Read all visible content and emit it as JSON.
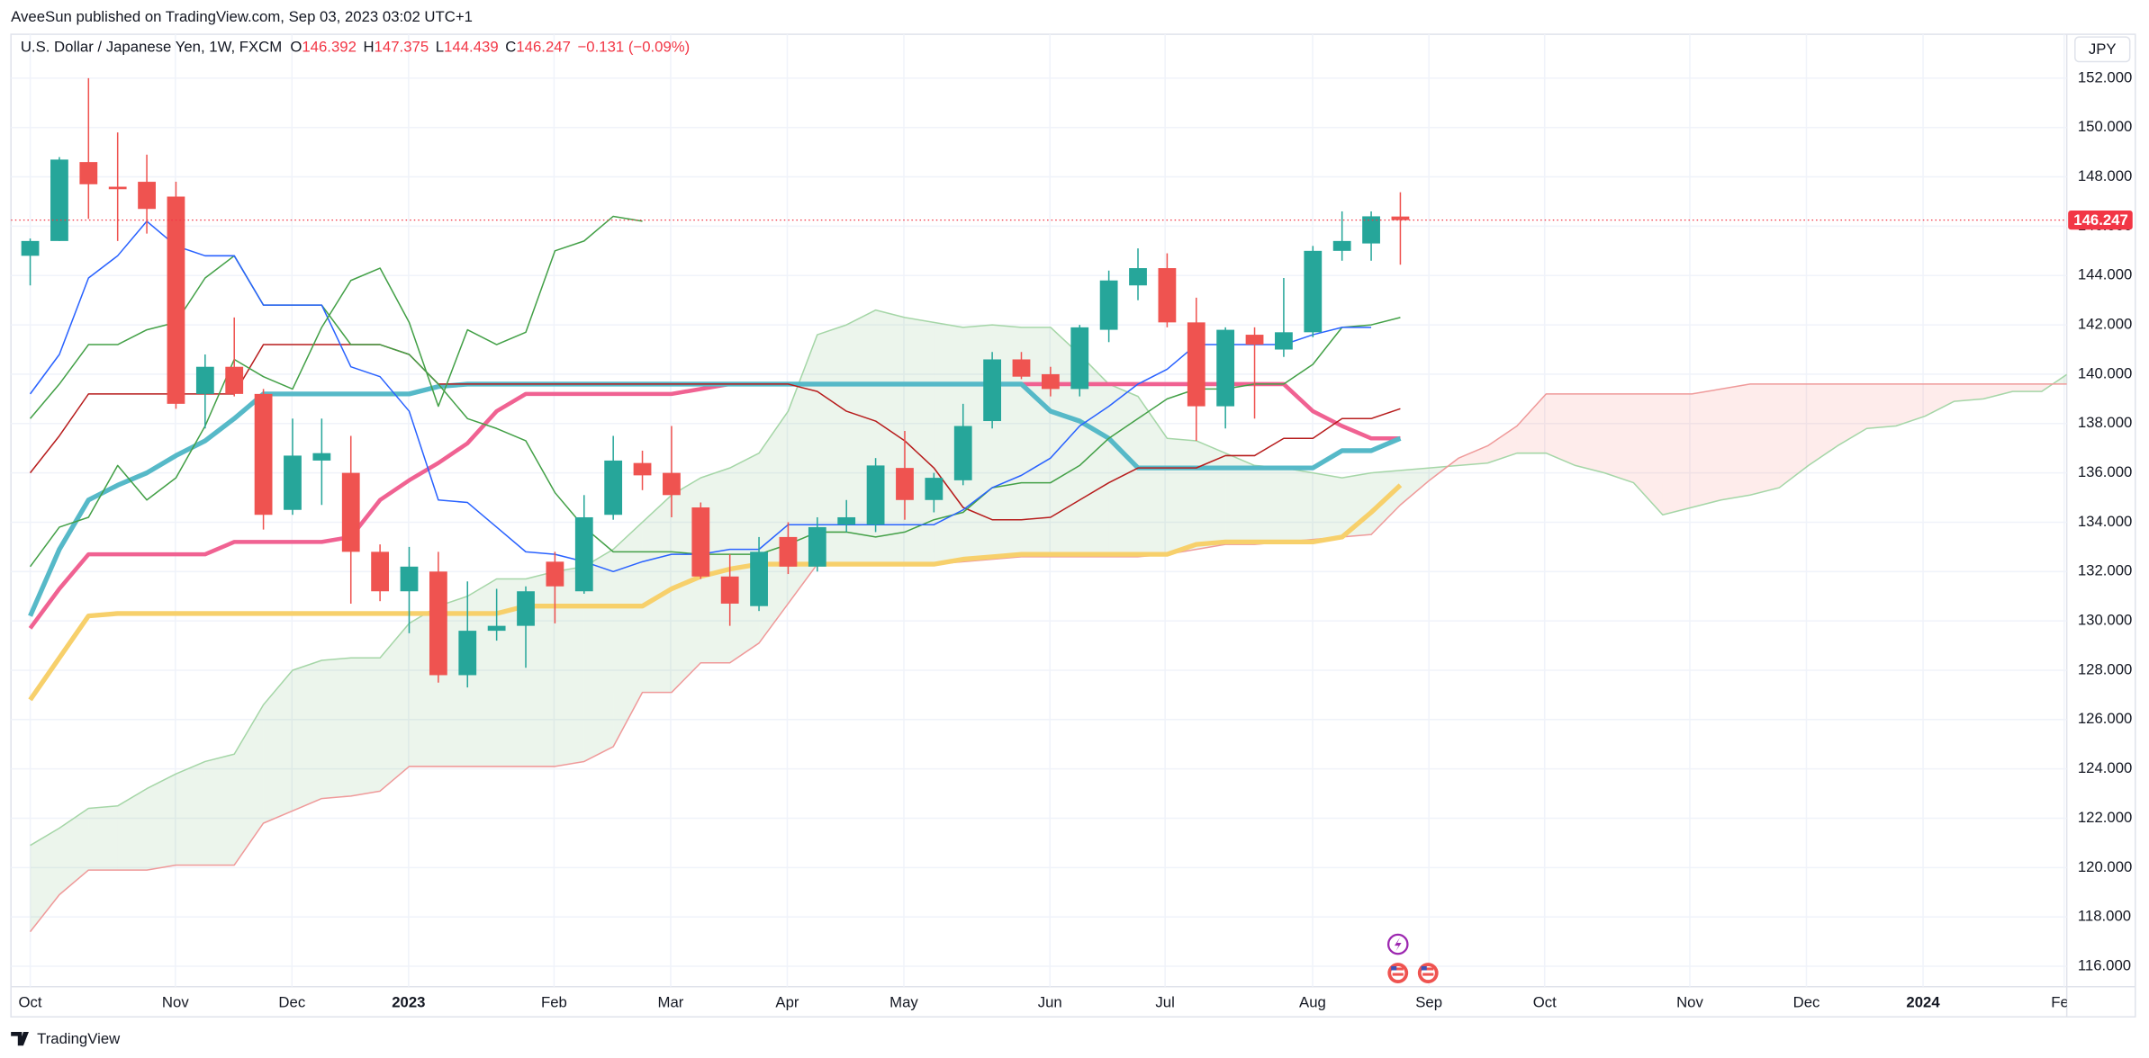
{
  "header": {
    "publisher": "AveeSun published on TradingView.com, Sep 03, 2023 03:02 UTC+1",
    "logo": "TradingView"
  },
  "chart_data": {
    "type": "candlestick",
    "title": "U.S. Dollar / Japanese Yen, 1W, FXCM",
    "ohlc_legend": [
      {
        "key": "O",
        "value": 146.392
      },
      {
        "key": "H",
        "value": 147.375
      },
      {
        "key": "L",
        "value": 144.439
      },
      {
        "key": "C",
        "value": 146.247
      }
    ],
    "change": "−0.131 (−0.09%)",
    "currency": "JPY",
    "up_color": "#26a69a",
    "down_color": "#ef5350",
    "candles": {
      "open": [
        144.8,
        145.4,
        148.6,
        147.6,
        147.8,
        147.2,
        139.2,
        140.3,
        139.2,
        134.5,
        136.5,
        136.0,
        132.8,
        131.2,
        132.0,
        127.8,
        129.6,
        129.8,
        132.4,
        131.2,
        134.3,
        136.4,
        136.0,
        134.6,
        131.8,
        130.6,
        133.4,
        132.2,
        133.9,
        133.9,
        136.2,
        134.9,
        135.7,
        138.1,
        140.6,
        140.0,
        139.4,
        141.8,
        143.6,
        144.3,
        142.1,
        138.7,
        141.6,
        141.0,
        141.7,
        145.0,
        145.3,
        146.392
      ],
      "high": [
        145.5,
        148.8,
        152.0,
        149.8,
        148.9,
        147.8,
        140.8,
        142.3,
        139.4,
        138.2,
        138.2,
        137.5,
        133.1,
        133.0,
        132.8,
        131.6,
        131.3,
        131.4,
        132.8,
        135.1,
        137.5,
        136.9,
        137.9,
        134.8,
        132.7,
        133.4,
        134.0,
        134.2,
        134.9,
        136.6,
        137.7,
        136.0,
        138.8,
        140.9,
        140.9,
        140.3,
        142.0,
        144.2,
        145.1,
        144.9,
        143.1,
        141.9,
        141.9,
        143.9,
        145.2,
        146.6,
        146.6,
        147.375
      ],
      "low": [
        143.6,
        145.4,
        146.3,
        145.4,
        145.7,
        138.6,
        137.8,
        139.1,
        133.7,
        134.3,
        134.7,
        130.7,
        130.8,
        129.5,
        127.5,
        127.3,
        129.2,
        128.1,
        129.9,
        131.1,
        134.1,
        135.3,
        134.2,
        131.7,
        129.8,
        130.4,
        131.9,
        132.0,
        133.6,
        133.6,
        134.1,
        134.4,
        135.5,
        137.8,
        139.8,
        139.1,
        139.1,
        141.3,
        143.0,
        141.9,
        137.3,
        137.8,
        138.2,
        140.7,
        141.5,
        144.6,
        144.6,
        144.439
      ],
      "close": [
        145.4,
        148.7,
        147.7,
        147.5,
        146.7,
        138.8,
        140.3,
        139.2,
        134.3,
        136.7,
        136.8,
        132.8,
        131.2,
        132.2,
        127.8,
        129.6,
        129.8,
        131.2,
        131.4,
        134.2,
        136.5,
        135.9,
        135.1,
        131.8,
        130.7,
        132.8,
        132.2,
        133.8,
        134.2,
        136.3,
        134.9,
        135.8,
        137.9,
        140.6,
        139.9,
        139.4,
        141.9,
        143.8,
        144.3,
        142.1,
        138.7,
        141.8,
        141.2,
        141.7,
        145.0,
        145.4,
        146.4,
        146.247
      ]
    },
    "lines": [
      {
        "color": "#f7d06b",
        "width": 3.5,
        "values": [
          126.8,
          128.5,
          130.2,
          130.3,
          130.3,
          130.3,
          130.3,
          130.3,
          130.3,
          130.3,
          130.3,
          130.3,
          130.3,
          130.3,
          130.3,
          130.3,
          130.3,
          130.6,
          130.6,
          130.6,
          130.6,
          130.6,
          131.3,
          131.8,
          132.1,
          132.3,
          132.3,
          132.3,
          132.3,
          132.3,
          132.3,
          132.3,
          132.5,
          132.6,
          132.7,
          132.7,
          132.7,
          132.7,
          132.7,
          132.7,
          133.1,
          133.2,
          133.2,
          133.2,
          133.2,
          133.4,
          134.4,
          135.5
        ]
      },
      {
        "color": "#f06292",
        "width": 3,
        "values": [
          129.7,
          131.3,
          132.7,
          132.7,
          132.7,
          132.7,
          132.7,
          133.2,
          133.2,
          133.2,
          133.2,
          133.4,
          134.9,
          135.7,
          136.4,
          137.2,
          138.5,
          139.2,
          139.2,
          139.2,
          139.2,
          139.2,
          139.2,
          139.4,
          139.6,
          139.6,
          139.6,
          139.6,
          139.6,
          139.6,
          139.6,
          139.6,
          139.6,
          139.6,
          139.6,
          139.6,
          139.6,
          139.6,
          139.6,
          139.6,
          139.6,
          139.6,
          139.6,
          139.6,
          138.5,
          137.9,
          137.4,
          137.4
        ]
      },
      {
        "color": "#56b9c8",
        "width": 3.5,
        "values": [
          130.2,
          132.9,
          134.9,
          135.5,
          136.0,
          136.7,
          137.3,
          138.2,
          139.2,
          139.2,
          139.2,
          139.2,
          139.2,
          139.2,
          139.5,
          139.6,
          139.6,
          139.6,
          139.6,
          139.6,
          139.6,
          139.6,
          139.6,
          139.6,
          139.6,
          139.6,
          139.6,
          139.6,
          139.6,
          139.6,
          139.6,
          139.6,
          139.6,
          139.6,
          139.6,
          138.5,
          138.1,
          137.4,
          136.2,
          136.2,
          136.2,
          136.2,
          136.2,
          136.2,
          136.2,
          136.9,
          136.9,
          137.4
        ]
      },
      {
        "color": "#b71c1c",
        "width": 1,
        "values": [
          136.0,
          137.5,
          139.2,
          139.2,
          139.2,
          139.2,
          139.2,
          139.2,
          141.2,
          141.2,
          141.2,
          141.2,
          141.2,
          140.8,
          139.6,
          139.6,
          139.6,
          139.6,
          139.6,
          139.6,
          139.6,
          139.6,
          139.6,
          139.6,
          139.6,
          139.6,
          139.6,
          139.3,
          138.5,
          138.1,
          137.3,
          136.2,
          134.6,
          134.1,
          134.1,
          134.2,
          134.9,
          135.6,
          136.2,
          136.2,
          136.2,
          136.7,
          136.7,
          137.4,
          137.4,
          138.2,
          138.2,
          138.6
        ]
      },
      {
        "color": "#43a047",
        "width": 1,
        "values": [
          138.2,
          139.6,
          141.2,
          141.2,
          141.8,
          142.1,
          143.9,
          144.8,
          142.8,
          142.8,
          142.8,
          141.2,
          141.2,
          140.8,
          139.6,
          138.2,
          137.8,
          137.3,
          135.2,
          133.8,
          132.8,
          132.8,
          132.8,
          132.7,
          132.7,
          132.7,
          133.1,
          133.6,
          133.6,
          133.4,
          133.6,
          134.1,
          134.4,
          135.4,
          135.6,
          135.6,
          136.3,
          137.4,
          138.2,
          139.0,
          139.4,
          139.4,
          139.6,
          139.6,
          140.4,
          141.9,
          142.0,
          142.3
        ]
      },
      {
        "color": "#2962ff",
        "width": 1,
        "values": [
          139.2,
          140.8,
          143.9,
          144.8,
          146.2,
          145.2,
          144.8,
          144.8,
          142.8,
          142.8,
          142.8,
          140.3,
          139.9,
          138.5,
          134.9,
          134.8,
          133.8,
          132.8,
          132.7,
          132.4,
          132.0,
          132.4,
          132.7,
          132.7,
          132.9,
          132.9,
          133.9,
          133.9,
          133.9,
          133.9,
          133.9,
          133.9,
          134.5,
          135.4,
          135.9,
          136.6,
          137.9,
          138.7,
          139.6,
          140.2,
          141.2,
          141.2,
          141.2,
          141.2,
          141.6,
          141.9,
          141.9
        ]
      },
      {
        "color": "#43a047",
        "width": 1,
        "values": [
          132.2,
          133.8,
          134.2,
          136.3,
          134.9,
          135.8,
          137.9,
          140.6,
          139.9,
          139.4,
          141.9,
          143.8,
          144.3,
          142.1,
          138.7,
          141.8,
          141.2,
          141.7,
          145.0,
          145.4,
          146.4,
          146.2
        ]
      }
    ],
    "cloud": {
      "span_a": {
        "color": "#a5d6a7",
        "values": [
          120.9,
          121.6,
          122.4,
          122.5,
          123.2,
          123.8,
          124.3,
          124.6,
          126.6,
          128.0,
          128.4,
          128.5,
          128.5,
          129.9,
          130.6,
          131.0,
          131.7,
          131.7,
          132.0,
          132.2,
          132.9,
          134.0,
          135.1,
          135.8,
          136.2,
          136.8,
          138.5,
          141.6,
          142.0,
          142.6,
          142.3,
          142.1,
          141.9,
          142.0,
          141.9,
          141.9,
          140.8,
          139.6,
          139.1,
          137.4,
          137.3,
          136.8,
          136.3,
          136.2,
          136.0,
          135.8,
          136.0,
          136.1,
          136.2,
          136.3,
          136.4,
          136.8,
          136.8,
          136.3,
          136.0,
          135.6,
          134.3,
          134.6,
          134.9,
          135.1,
          135.4,
          136.3,
          137.1,
          137.8,
          137.9,
          138.3,
          138.9,
          139.0,
          139.3,
          139.3,
          140.1
        ]
      },
      "span_b": {
        "color": "#ef9a9a",
        "values": [
          117.4,
          118.9,
          119.9,
          119.9,
          119.9,
          120.1,
          120.1,
          120.1,
          121.8,
          122.3,
          122.8,
          122.9,
          123.1,
          124.1,
          124.1,
          124.1,
          124.1,
          124.1,
          124.1,
          124.3,
          124.9,
          127.1,
          127.1,
          128.3,
          128.3,
          129.1,
          130.7,
          132.3,
          132.3,
          132.3,
          132.3,
          132.3,
          132.4,
          132.5,
          132.6,
          132.6,
          132.6,
          132.6,
          132.6,
          132.7,
          132.9,
          133.1,
          133.1,
          133.2,
          133.3,
          133.4,
          133.5,
          134.7,
          135.7,
          136.6,
          137.1,
          137.9,
          139.2,
          139.2,
          139.2,
          139.2,
          139.2,
          139.2,
          139.4,
          139.6,
          139.6,
          139.6,
          139.6,
          139.6,
          139.6,
          139.6,
          139.6,
          139.6,
          139.6,
          139.6,
          139.6
        ]
      },
      "up_fill": "rgba(67,160,71,0.10)",
      "down_fill": "rgba(244,67,54,0.10)"
    },
    "last_price": 146.247,
    "last_price_color": "#f23645",
    "grid": true,
    "xlim": [
      -0.66,
      69.86
    ],
    "xticks": [
      {
        "value": 0,
        "label": "Oct"
      },
      {
        "value": 4.98,
        "label": "Nov"
      },
      {
        "value": 8.98,
        "label": "Dec"
      },
      {
        "value": 12.98,
        "label": "2023"
      },
      {
        "value": 17.97,
        "label": "Feb"
      },
      {
        "value": 21.97,
        "label": "Mar"
      },
      {
        "value": 25.97,
        "label": "Apr"
      },
      {
        "value": 29.97,
        "label": "May"
      },
      {
        "value": 34.98,
        "label": "Jun"
      },
      {
        "value": 38.93,
        "label": "Jul"
      },
      {
        "value": 43.99,
        "label": "Aug"
      },
      {
        "value": 47.98,
        "label": "Sep"
      },
      {
        "value": 51.95,
        "label": "Oct"
      },
      {
        "value": 56.93,
        "label": "Nov"
      },
      {
        "value": 60.93,
        "label": "Dec"
      },
      {
        "value": 64.93,
        "label": "2024"
      },
      {
        "value": 69.77,
        "label": "Feb"
      }
    ],
    "ylim": [
      115.17,
      153.78
    ],
    "yticks": [
      {
        "value": 116,
        "label": "116.000"
      },
      {
        "value": 118,
        "label": "118.000"
      },
      {
        "value": 120,
        "label": "120.000"
      },
      {
        "value": 122,
        "label": "122.000"
      },
      {
        "value": 124,
        "label": "124.000"
      },
      {
        "value": 126,
        "label": "126.000"
      },
      {
        "value": 128,
        "label": "128.000"
      },
      {
        "value": 130,
        "label": "130.000"
      },
      {
        "value": 132,
        "label": "132.000"
      },
      {
        "value": 134,
        "label": "134.000"
      },
      {
        "value": 136,
        "label": "136.000"
      },
      {
        "value": 138,
        "label": "138.000"
      },
      {
        "value": 140,
        "label": "140.000"
      },
      {
        "value": 142,
        "label": "142.000"
      },
      {
        "value": 144,
        "label": "144.000"
      },
      {
        "value": 146,
        "label": "146.000"
      },
      {
        "value": 148,
        "label": "148.000"
      },
      {
        "value": 150,
        "label": "150.000"
      },
      {
        "value": 152,
        "label": "152.000"
      }
    ]
  }
}
